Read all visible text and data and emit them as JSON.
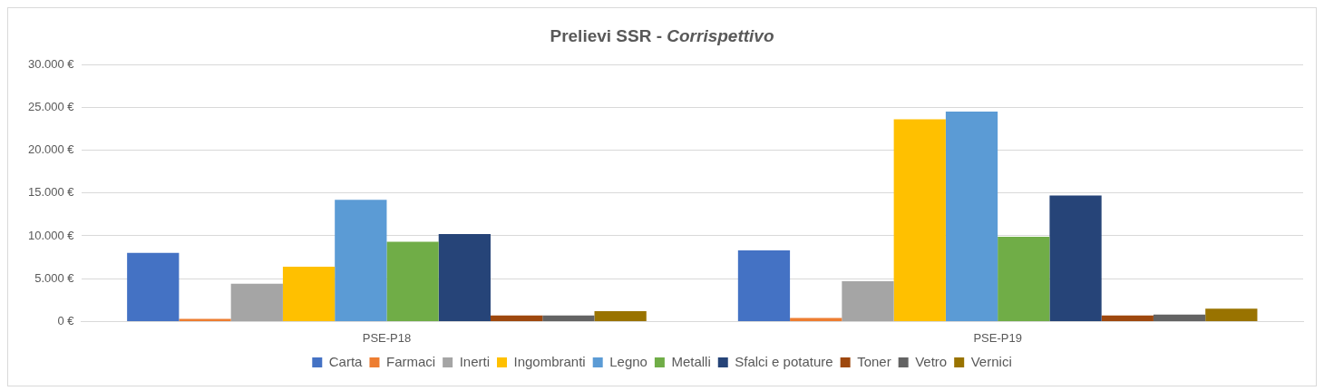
{
  "chart_data": {
    "type": "bar",
    "title": "Prelievi SSR - Corrispettivo",
    "categories": [
      "PSE-P18",
      "PSE-P19"
    ],
    "series": [
      {
        "name": "Carta",
        "color": "#4472c4",
        "values": [
          8000,
          8300
        ]
      },
      {
        "name": "Farmaci",
        "color": "#ed7d31",
        "values": [
          300,
          400
        ]
      },
      {
        "name": "Inerti",
        "color": "#a5a5a5",
        "values": [
          4400,
          4700
        ]
      },
      {
        "name": "Ingombranti",
        "color": "#ffc000",
        "values": [
          6400,
          23600
        ]
      },
      {
        "name": "Legno",
        "color": "#5b9bd5",
        "values": [
          14200,
          24500
        ]
      },
      {
        "name": "Metalli",
        "color": "#70ad47",
        "values": [
          9300,
          9900
        ]
      },
      {
        "name": "Sfalci e potature",
        "color": "#264478",
        "values": [
          10200,
          14700
        ]
      },
      {
        "name": "Toner",
        "color": "#9e480e",
        "values": [
          700,
          700
        ]
      },
      {
        "name": "Vetro",
        "color": "#636363",
        "values": [
          700,
          800
        ]
      },
      {
        "name": "Vernici",
        "color": "#997300",
        "values": [
          1200,
          1500
        ]
      }
    ],
    "ylim": [
      0,
      30000
    ],
    "yticks": [
      {
        "value": 0,
        "label": "0 €"
      },
      {
        "value": 5000,
        "label": "5.000 €"
      },
      {
        "value": 10000,
        "label": "10.000 €"
      },
      {
        "value": 15000,
        "label": "15.000 €"
      },
      {
        "value": 20000,
        "label": "20.000 €"
      },
      {
        "value": 25000,
        "label": "25.000 €"
      },
      {
        "value": 30000,
        "label": "30.000 €"
      }
    ],
    "grid": "y",
    "legend": "bottom"
  }
}
